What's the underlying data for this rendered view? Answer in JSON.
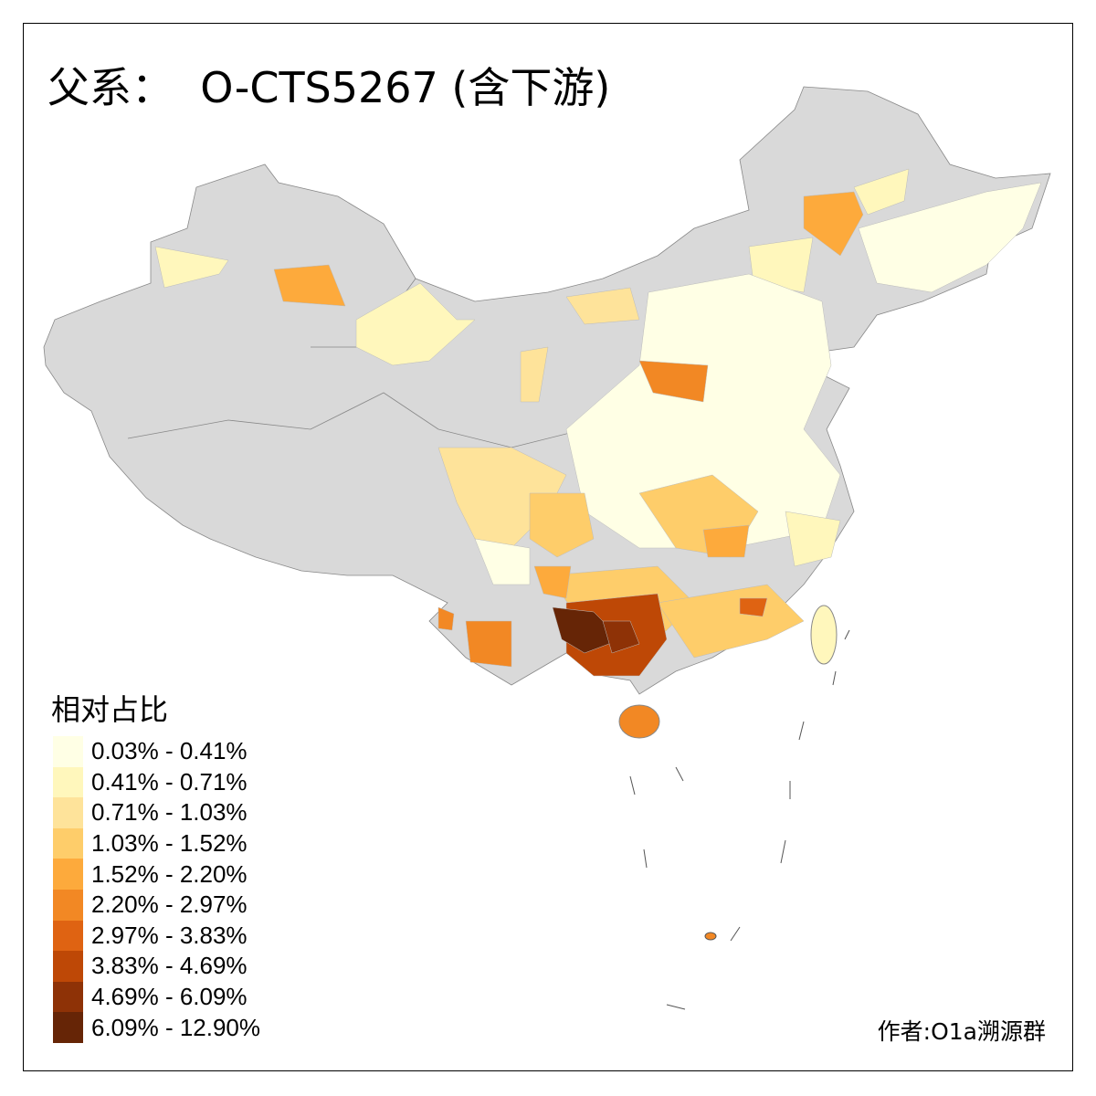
{
  "title": "父系：  O-CTS5267 (含下游)",
  "legend": {
    "title": "相对占比",
    "items": [
      {
        "label": "0.03% - 0.41%",
        "color": "#FFFFE5"
      },
      {
        "label": "0.41% - 0.71%",
        "color": "#FFF7BC"
      },
      {
        "label": "0.71% - 1.03%",
        "color": "#FEE39A"
      },
      {
        "label": "1.03% - 1.52%",
        "color": "#FECD6A"
      },
      {
        "label": "1.52% - 2.20%",
        "color": "#FDAA3C"
      },
      {
        "label": "2.20% - 2.97%",
        "color": "#F28824"
      },
      {
        "label": "2.97% - 3.83%",
        "color": "#DF6312"
      },
      {
        "label": "3.83% - 4.69%",
        "color": "#BE4806"
      },
      {
        "label": "4.69% - 6.09%",
        "color": "#8E3206"
      },
      {
        "label": "6.09% - 12.90%",
        "color": "#662506"
      }
    ]
  },
  "no_data_color": "#D9D9D9",
  "credit": "作者:O1a溯源群"
}
